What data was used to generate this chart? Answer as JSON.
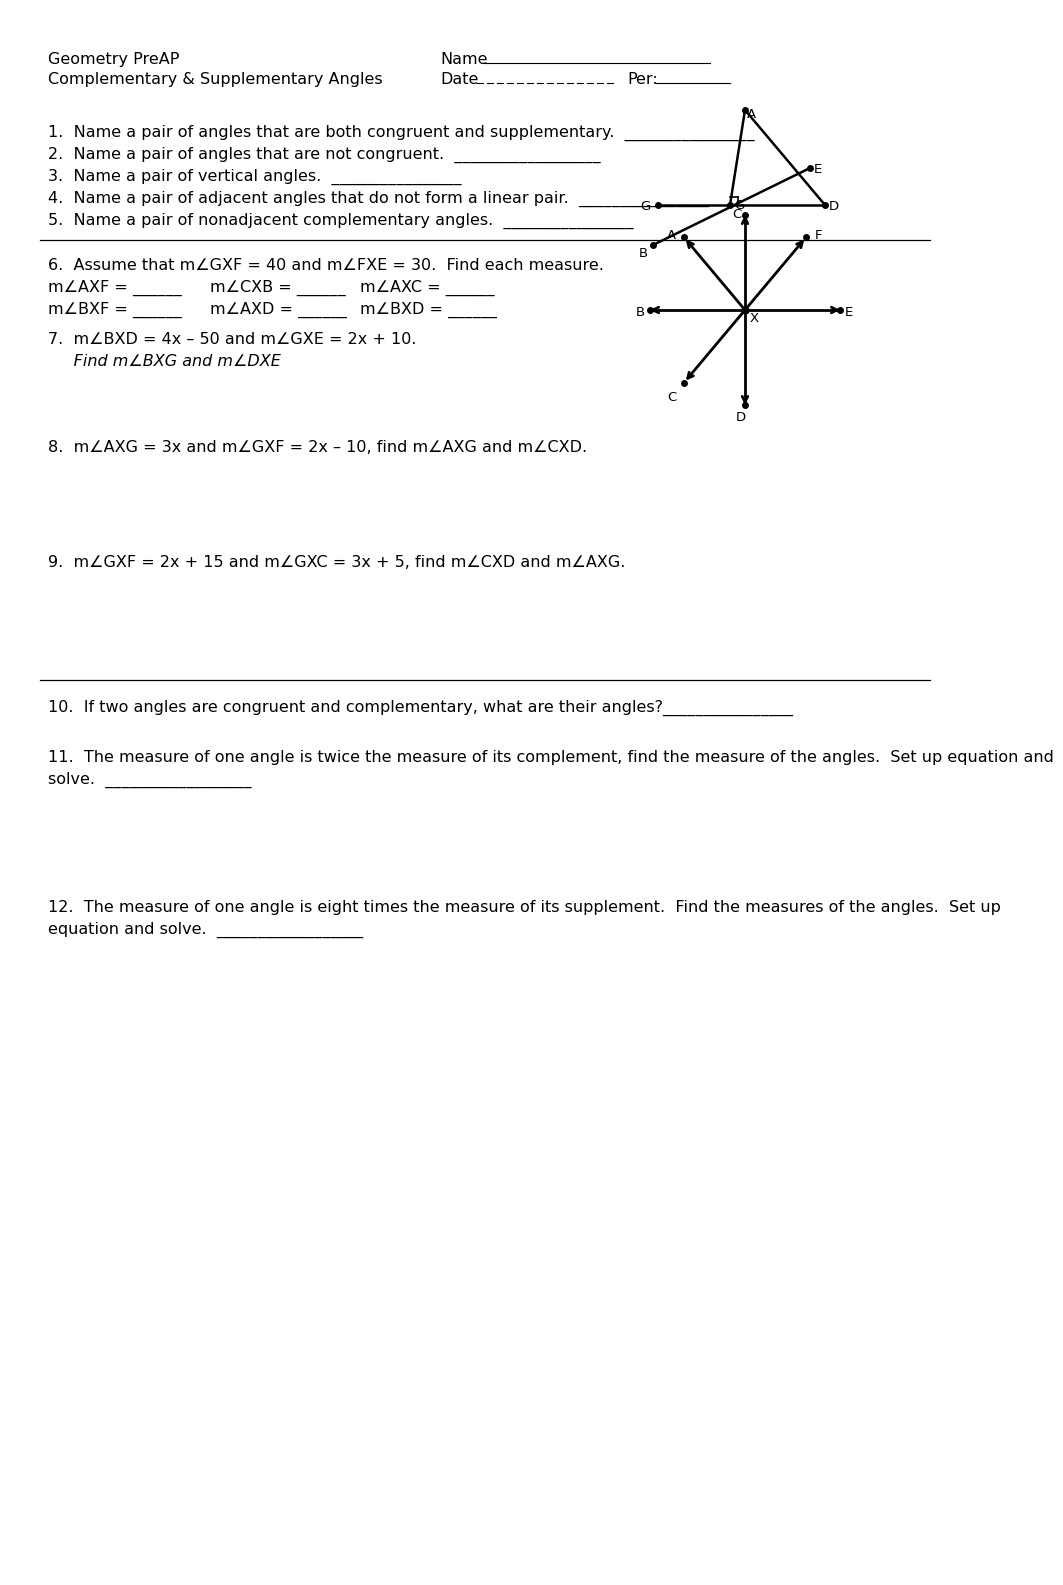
{
  "title": "Geometry PreAP",
  "subtitle": "Complementary & Supplementary Angles",
  "background": "#ffffff",
  "text_color": "#000000",
  "q1": "1.  Name a pair of angles that are both congruent and supplementary.  ________________",
  "q2": "2.  Name a pair of angles that are not congruent.  __________________",
  "q3": "3.  Name a pair of vertical angles.  ________________",
  "q4": "4.  Name a pair of adjacent angles that do not form a linear pair.  ________________",
  "q5": "5.  Name a pair of nonadjacent complementary angles.  ________________",
  "q6_header": "6.  Assume that m∠GXF = 40 and m∠FXE = 30.  Find each measure.",
  "q6_r1": [
    "m∠AXF = ______",
    "m∠CXB = ______",
    "m∠AXC = ______"
  ],
  "q6_r2": [
    "m∠BXF = ______",
    "m∠AXD = ______",
    "m∠BXD = ______"
  ],
  "q7_line1": "7.  m∠BXD = 4x – 50 and m∠GXE = 2x + 10.",
  "q7_line2": "     Find m∠BXG and m∠DXE",
  "q8": "8.  m∠AXG = 3x and m∠GXF = 2x – 10, find m∠AXG and m∠CXD.",
  "q9": "9.  m∠GXF = 2x + 15 and m∠GXC = 3x + 5, find m∠CXD and m∠AXG.",
  "q10": "10.  If two angles are congruent and complementary, what are their angles?________________",
  "q11a": "11.  The measure of one angle is twice the measure of its complement, find the measure of the angles.  Set up equation and",
  "q11b": "solve.  __________________",
  "q12a": "12.  The measure of one angle is eight times the measure of its supplement.  Find the measures of the angles.  Set up",
  "q12b": "equation and solve.  __________________"
}
